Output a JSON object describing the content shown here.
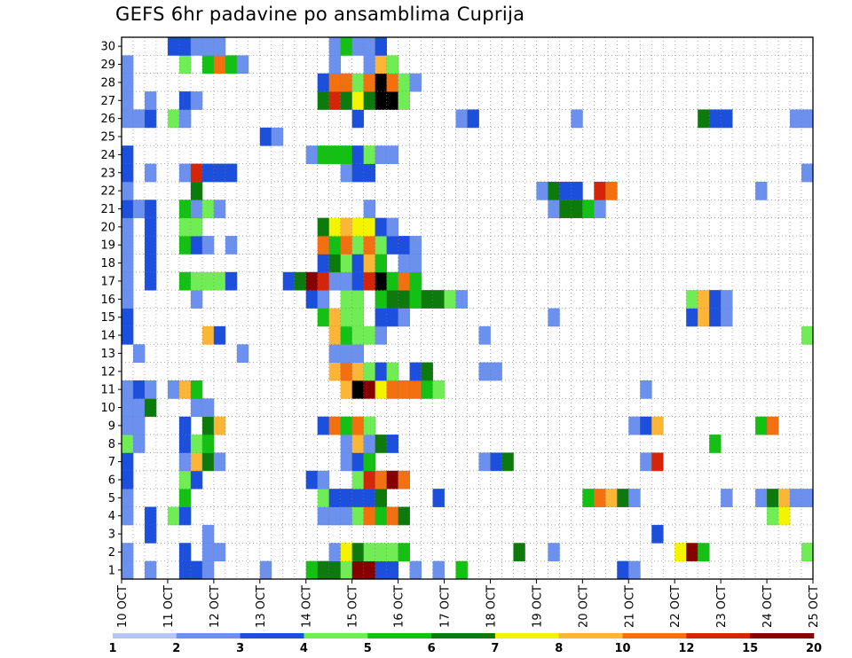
{
  "chart_data": {
    "type": "heatmap",
    "title": "GEFS 6hr padavine po ansamblima Cuprija",
    "xlabel": "",
    "ylabel": "",
    "x_ticks": [
      "10 OCT",
      "11 OCT",
      "12 OCT",
      "13 OCT",
      "14 OCT",
      "15 OCT",
      "16 OCT",
      "17 OCT",
      "18 OCT",
      "19 OCT",
      "20 OCT",
      "21 OCT",
      "22 OCT",
      "23 OCT",
      "24 OCT",
      "25 OCT"
    ],
    "y_ticks": [
      "1",
      "2",
      "3",
      "4",
      "5",
      "6",
      "7",
      "8",
      "9",
      "10",
      "11",
      "12",
      "13",
      "14",
      "15",
      "16",
      "17",
      "18",
      "19",
      "20",
      "21",
      "22",
      "23",
      "24",
      "25",
      "26",
      "27",
      "28",
      "29",
      "30"
    ],
    "steps_per_day": 4,
    "num_steps": 60,
    "num_members": 30,
    "grid": true,
    "legend": {
      "position": "bottom",
      "labels": [
        "1",
        "2",
        "3",
        "4",
        "5",
        "6",
        "7",
        "8",
        "10",
        "12",
        "15",
        "20"
      ],
      "colors": [
        "#b5c8f5",
        "#6b90ee",
        "#1c4fdb",
        "#70ec54",
        "#15c015",
        "#0d7a0d",
        "#f4f400",
        "#fbb637",
        "#f2700f",
        "#d42508",
        "#860000"
      ]
    },
    "cells": [
      [
        1,
        0,
        1
      ],
      [
        1,
        2,
        1
      ],
      [
        1,
        5,
        2
      ],
      [
        1,
        6,
        2
      ],
      [
        1,
        7,
        1
      ],
      [
        1,
        12,
        1
      ],
      [
        1,
        16,
        4
      ],
      [
        1,
        17,
        5
      ],
      [
        1,
        18,
        5
      ],
      [
        1,
        19,
        3
      ],
      [
        1,
        20,
        10
      ],
      [
        1,
        21,
        10
      ],
      [
        1,
        22,
        2
      ],
      [
        1,
        23,
        2
      ],
      [
        1,
        25,
        1
      ],
      [
        1,
        27,
        1
      ],
      [
        1,
        29,
        4
      ],
      [
        1,
        43,
        2
      ],
      [
        1,
        44,
        1
      ],
      [
        2,
        0,
        1
      ],
      [
        2,
        5,
        2
      ],
      [
        2,
        7,
        1
      ],
      [
        2,
        8,
        1
      ],
      [
        2,
        18,
        1
      ],
      [
        2,
        19,
        6
      ],
      [
        2,
        20,
        5
      ],
      [
        2,
        21,
        3
      ],
      [
        2,
        22,
        3
      ],
      [
        2,
        23,
        3
      ],
      [
        2,
        24,
        4
      ],
      [
        2,
        34,
        5
      ],
      [
        2,
        37,
        1
      ],
      [
        2,
        48,
        6
      ],
      [
        2,
        49,
        10
      ],
      [
        2,
        50,
        4
      ],
      [
        2,
        59,
        3
      ],
      [
        3,
        2,
        2
      ],
      [
        3,
        7,
        1
      ],
      [
        3,
        46,
        2
      ],
      [
        4,
        0,
        1
      ],
      [
        4,
        2,
        2
      ],
      [
        4,
        4,
        3
      ],
      [
        4,
        5,
        2
      ],
      [
        4,
        17,
        1
      ],
      [
        4,
        18,
        1
      ],
      [
        4,
        19,
        1
      ],
      [
        4,
        20,
        3
      ],
      [
        4,
        21,
        8
      ],
      [
        4,
        22,
        4
      ],
      [
        4,
        23,
        8
      ],
      [
        4,
        24,
        5
      ],
      [
        4,
        56,
        3
      ],
      [
        4,
        57,
        6
      ],
      [
        5,
        0,
        1
      ],
      [
        5,
        5,
        4
      ],
      [
        5,
        17,
        3
      ],
      [
        5,
        18,
        2
      ],
      [
        5,
        19,
        2
      ],
      [
        5,
        20,
        2
      ],
      [
        5,
        21,
        2
      ],
      [
        5,
        22,
        5
      ],
      [
        5,
        27,
        2
      ],
      [
        5,
        40,
        4
      ],
      [
        5,
        41,
        8
      ],
      [
        5,
        42,
        7
      ],
      [
        5,
        43,
        5
      ],
      [
        5,
        44,
        1
      ],
      [
        5,
        52,
        1
      ],
      [
        5,
        55,
        1
      ],
      [
        5,
        56,
        5
      ],
      [
        5,
        57,
        7
      ],
      [
        5,
        58,
        1
      ],
      [
        5,
        59,
        1
      ],
      [
        6,
        0,
        2
      ],
      [
        6,
        5,
        3
      ],
      [
        6,
        6,
        2
      ],
      [
        6,
        16,
        2
      ],
      [
        6,
        17,
        1
      ],
      [
        6,
        20,
        3
      ],
      [
        6,
        21,
        9
      ],
      [
        6,
        22,
        8
      ],
      [
        6,
        23,
        10
      ],
      [
        6,
        24,
        8
      ],
      [
        7,
        0,
        2
      ],
      [
        7,
        5,
        1
      ],
      [
        7,
        6,
        7
      ],
      [
        7,
        7,
        5
      ],
      [
        7,
        8,
        1
      ],
      [
        7,
        19,
        1
      ],
      [
        7,
        20,
        2
      ],
      [
        7,
        21,
        4
      ],
      [
        7,
        31,
        1
      ],
      [
        7,
        32,
        2
      ],
      [
        7,
        33,
        5
      ],
      [
        7,
        45,
        1
      ],
      [
        7,
        46,
        9
      ],
      [
        8,
        0,
        3
      ],
      [
        8,
        1,
        1
      ],
      [
        8,
        5,
        2
      ],
      [
        8,
        6,
        3
      ],
      [
        8,
        7,
        4
      ],
      [
        8,
        19,
        1
      ],
      [
        8,
        20,
        7
      ],
      [
        8,
        21,
        1
      ],
      [
        8,
        22,
        5
      ],
      [
        8,
        23,
        2
      ],
      [
        8,
        51,
        4
      ],
      [
        9,
        0,
        1
      ],
      [
        9,
        1,
        1
      ],
      [
        9,
        5,
        2
      ],
      [
        9,
        7,
        5
      ],
      [
        9,
        8,
        7
      ],
      [
        9,
        17,
        2
      ],
      [
        9,
        18,
        8
      ],
      [
        9,
        19,
        4
      ],
      [
        9,
        20,
        8
      ],
      [
        9,
        21,
        3
      ],
      [
        9,
        44,
        1
      ],
      [
        9,
        45,
        2
      ],
      [
        9,
        46,
        7
      ],
      [
        9,
        55,
        4
      ],
      [
        9,
        56,
        8
      ],
      [
        10,
        0,
        1
      ],
      [
        10,
        1,
        1
      ],
      [
        10,
        2,
        5
      ],
      [
        10,
        6,
        1
      ],
      [
        10,
        7,
        1
      ],
      [
        11,
        0,
        1
      ],
      [
        11,
        1,
        2
      ],
      [
        11,
        2,
        1
      ],
      [
        11,
        4,
        1
      ],
      [
        11,
        5,
        7
      ],
      [
        11,
        6,
        4
      ],
      [
        11,
        19,
        7
      ],
      [
        11,
        20,
        11
      ],
      [
        11,
        21,
        10
      ],
      [
        11,
        22,
        6
      ],
      [
        11,
        23,
        8
      ],
      [
        11,
        24,
        8
      ],
      [
        11,
        25,
        8
      ],
      [
        11,
        26,
        4
      ],
      [
        11,
        27,
        3
      ],
      [
        11,
        45,
        1
      ],
      [
        12,
        18,
        7
      ],
      [
        12,
        19,
        8
      ],
      [
        12,
        20,
        7
      ],
      [
        12,
        21,
        3
      ],
      [
        12,
        22,
        2
      ],
      [
        12,
        23,
        3
      ],
      [
        12,
        25,
        2
      ],
      [
        12,
        26,
        5
      ],
      [
        12,
        31,
        1
      ],
      [
        12,
        32,
        1
      ],
      [
        13,
        1,
        1
      ],
      [
        13,
        10,
        1
      ],
      [
        13,
        18,
        1
      ],
      [
        13,
        19,
        1
      ],
      [
        13,
        20,
        1
      ],
      [
        14,
        0,
        2
      ],
      [
        14,
        7,
        7
      ],
      [
        14,
        8,
        2
      ],
      [
        14,
        18,
        7
      ],
      [
        14,
        19,
        4
      ],
      [
        14,
        20,
        3
      ],
      [
        14,
        21,
        3
      ],
      [
        14,
        22,
        1
      ],
      [
        14,
        31,
        1
      ],
      [
        14,
        59,
        3
      ],
      [
        15,
        0,
        2
      ],
      [
        15,
        17,
        4
      ],
      [
        15,
        18,
        7
      ],
      [
        15,
        19,
        3
      ],
      [
        15,
        20,
        3
      ],
      [
        15,
        22,
        2
      ],
      [
        15,
        23,
        2
      ],
      [
        15,
        24,
        1
      ],
      [
        15,
        37,
        1
      ],
      [
        15,
        49,
        2
      ],
      [
        15,
        50,
        7
      ],
      [
        15,
        51,
        2
      ],
      [
        15,
        52,
        1
      ],
      [
        16,
        0,
        1
      ],
      [
        16,
        6,
        1
      ],
      [
        16,
        16,
        2
      ],
      [
        16,
        17,
        1
      ],
      [
        16,
        19,
        3
      ],
      [
        16,
        20,
        3
      ],
      [
        16,
        22,
        4
      ],
      [
        16,
        23,
        5
      ],
      [
        16,
        24,
        5
      ],
      [
        16,
        25,
        4
      ],
      [
        16,
        26,
        5
      ],
      [
        16,
        27,
        5
      ],
      [
        16,
        28,
        3
      ],
      [
        16,
        29,
        1
      ],
      [
        16,
        49,
        3
      ],
      [
        16,
        50,
        7
      ],
      [
        16,
        51,
        2
      ],
      [
        16,
        52,
        1
      ],
      [
        17,
        0,
        1
      ],
      [
        17,
        2,
        2
      ],
      [
        17,
        5,
        4
      ],
      [
        17,
        6,
        3
      ],
      [
        17,
        7,
        3
      ],
      [
        17,
        8,
        3
      ],
      [
        17,
        9,
        2
      ],
      [
        17,
        14,
        2
      ],
      [
        17,
        15,
        5
      ],
      [
        17,
        16,
        10
      ],
      [
        17,
        17,
        9
      ],
      [
        17,
        18,
        1
      ],
      [
        17,
        19,
        1
      ],
      [
        17,
        20,
        2
      ],
      [
        17,
        21,
        9
      ],
      [
        17,
        22,
        11
      ],
      [
        17,
        23,
        4
      ],
      [
        17,
        24,
        8
      ],
      [
        17,
        25,
        4
      ],
      [
        18,
        0,
        1
      ],
      [
        18,
        2,
        2
      ],
      [
        18,
        17,
        2
      ],
      [
        18,
        18,
        5
      ],
      [
        18,
        19,
        3
      ],
      [
        18,
        20,
        2
      ],
      [
        18,
        21,
        7
      ],
      [
        18,
        22,
        4
      ],
      [
        18,
        24,
        1
      ],
      [
        18,
        25,
        1
      ],
      [
        19,
        0,
        1
      ],
      [
        19,
        2,
        2
      ],
      [
        19,
        5,
        4
      ],
      [
        19,
        6,
        2
      ],
      [
        19,
        7,
        1
      ],
      [
        19,
        9,
        1
      ],
      [
        19,
        17,
        8
      ],
      [
        19,
        18,
        4
      ],
      [
        19,
        19,
        8
      ],
      [
        19,
        20,
        3
      ],
      [
        19,
        21,
        8
      ],
      [
        19,
        22,
        3
      ],
      [
        19,
        23,
        2
      ],
      [
        19,
        24,
        2
      ],
      [
        19,
        25,
        1
      ],
      [
        20,
        0,
        1
      ],
      [
        20,
        2,
        2
      ],
      [
        20,
        5,
        3
      ],
      [
        20,
        6,
        3
      ],
      [
        20,
        17,
        5
      ],
      [
        20,
        18,
        6
      ],
      [
        20,
        19,
        7
      ],
      [
        20,
        20,
        6
      ],
      [
        20,
        21,
        6
      ],
      [
        20,
        22,
        2
      ],
      [
        20,
        23,
        1
      ],
      [
        21,
        0,
        2
      ],
      [
        21,
        1,
        1
      ],
      [
        21,
        2,
        2
      ],
      [
        21,
        5,
        4
      ],
      [
        21,
        6,
        1
      ],
      [
        21,
        7,
        3
      ],
      [
        21,
        8,
        1
      ],
      [
        21,
        21,
        1
      ],
      [
        21,
        37,
        1
      ],
      [
        21,
        38,
        5
      ],
      [
        21,
        39,
        5
      ],
      [
        21,
        40,
        4
      ],
      [
        21,
        41,
        1
      ],
      [
        22,
        0,
        1
      ],
      [
        22,
        6,
        5
      ],
      [
        22,
        36,
        1
      ],
      [
        22,
        37,
        5
      ],
      [
        22,
        38,
        2
      ],
      [
        22,
        39,
        2
      ],
      [
        22,
        41,
        9
      ],
      [
        22,
        42,
        8
      ],
      [
        22,
        55,
        1
      ],
      [
        23,
        0,
        2
      ],
      [
        23,
        2,
        1
      ],
      [
        23,
        5,
        1
      ],
      [
        23,
        6,
        9
      ],
      [
        23,
        7,
        2
      ],
      [
        23,
        8,
        2
      ],
      [
        23,
        9,
        2
      ],
      [
        23,
        19,
        1
      ],
      [
        23,
        20,
        2
      ],
      [
        23,
        21,
        2
      ],
      [
        23,
        59,
        1
      ],
      [
        24,
        0,
        2
      ],
      [
        24,
        16,
        1
      ],
      [
        24,
        17,
        4
      ],
      [
        24,
        18,
        4
      ],
      [
        24,
        19,
        4
      ],
      [
        24,
        20,
        2
      ],
      [
        24,
        21,
        3
      ],
      [
        24,
        22,
        1
      ],
      [
        24,
        23,
        1
      ],
      [
        25,
        12,
        2
      ],
      [
        25,
        13,
        1
      ],
      [
        26,
        0,
        1
      ],
      [
        26,
        1,
        1
      ],
      [
        26,
        2,
        2
      ],
      [
        26,
        4,
        3
      ],
      [
        26,
        5,
        1
      ],
      [
        26,
        20,
        2
      ],
      [
        26,
        29,
        1
      ],
      [
        26,
        30,
        2
      ],
      [
        26,
        39,
        1
      ],
      [
        26,
        50,
        5
      ],
      [
        26,
        51,
        2
      ],
      [
        26,
        52,
        2
      ],
      [
        26,
        58,
        1
      ],
      [
        26,
        59,
        1
      ],
      [
        27,
        0,
        1
      ],
      [
        27,
        2,
        1
      ],
      [
        27,
        5,
        2
      ],
      [
        27,
        6,
        1
      ],
      [
        27,
        17,
        5
      ],
      [
        27,
        18,
        9
      ],
      [
        27,
        19,
        5
      ],
      [
        27,
        20,
        6
      ],
      [
        27,
        21,
        5
      ],
      [
        27,
        22,
        11
      ],
      [
        27,
        23,
        11
      ],
      [
        27,
        24,
        3
      ],
      [
        28,
        0,
        1
      ],
      [
        28,
        17,
        2
      ],
      [
        28,
        18,
        8
      ],
      [
        28,
        19,
        8
      ],
      [
        28,
        20,
        3
      ],
      [
        28,
        21,
        8
      ],
      [
        28,
        22,
        11
      ],
      [
        28,
        23,
        8
      ],
      [
        28,
        24,
        3
      ],
      [
        28,
        25,
        1
      ],
      [
        29,
        0,
        1
      ],
      [
        29,
        5,
        3
      ],
      [
        29,
        7,
        4
      ],
      [
        29,
        8,
        8
      ],
      [
        29,
        9,
        4
      ],
      [
        29,
        10,
        1
      ],
      [
        29,
        18,
        1
      ],
      [
        29,
        21,
        1
      ],
      [
        29,
        22,
        7
      ],
      [
        29,
        23,
        3
      ],
      [
        30,
        4,
        2
      ],
      [
        30,
        5,
        2
      ],
      [
        30,
        6,
        1
      ],
      [
        30,
        7,
        1
      ],
      [
        30,
        8,
        1
      ],
      [
        30,
        18,
        1
      ],
      [
        30,
        19,
        4
      ],
      [
        30,
        20,
        1
      ],
      [
        30,
        21,
        1
      ],
      [
        30,
        22,
        2
      ]
    ]
  }
}
